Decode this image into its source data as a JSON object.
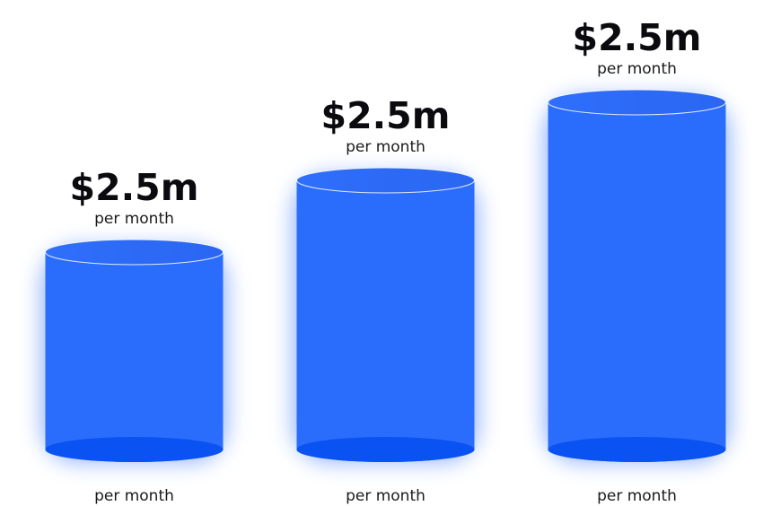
{
  "colors": {
    "cylinder_body": "#2a6dfd",
    "cylinder_top": "#2c6cf8",
    "cylinder_base": "#0a52f2",
    "glow": "#3a76ff",
    "text_dark": "#0b0b0f"
  },
  "chart_data": {
    "type": "bar",
    "style": "3d-cylinder",
    "grid": false,
    "legend": "none",
    "ylim": [
      0,
      400
    ],
    "bars": [
      {
        "label": "$2.5m",
        "sublabel": "per month",
        "bottom_label": "per month",
        "height": 220
      },
      {
        "label": "$2.5m",
        "sublabel": "per month",
        "bottom_label": "per month",
        "height": 300
      },
      {
        "label": "$2.5m",
        "sublabel": "per month",
        "bottom_label": "per month",
        "height": 387
      }
    ]
  }
}
